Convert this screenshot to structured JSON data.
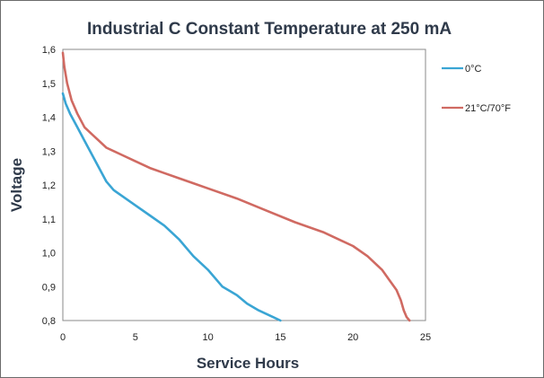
{
  "chart_data": {
    "type": "line",
    "title": "Industrial C Constant Temperature at 250 mA",
    "xlabel": "Service Hours",
    "ylabel": "Voltage",
    "xlim": [
      0,
      25
    ],
    "ylim": [
      0.8,
      1.6
    ],
    "x_ticks": [
      "0",
      "5",
      "10",
      "15",
      "20",
      "25"
    ],
    "y_ticks": [
      "0,8",
      "0,9",
      "1,0",
      "1,1",
      "1,2",
      "1,3",
      "1,4",
      "1,5",
      "1,6"
    ],
    "grid": true,
    "legend_position": "right",
    "series": [
      {
        "name": "0°C",
        "color": "#3aa5d4",
        "x": [
          0,
          0.2,
          0.5,
          1,
          1.5,
          2,
          2.5,
          3,
          3.5,
          4,
          5,
          6,
          7,
          8,
          9,
          10,
          11,
          12,
          12.7,
          13.5,
          14.5,
          15
        ],
        "y": [
          1.47,
          1.44,
          1.41,
          1.37,
          1.33,
          1.29,
          1.25,
          1.21,
          1.185,
          1.17,
          1.14,
          1.11,
          1.08,
          1.04,
          0.99,
          0.95,
          0.9,
          0.875,
          0.85,
          0.83,
          0.81,
          0.8
        ]
      },
      {
        "name": "21°C/70°F",
        "color": "#d06a62",
        "x": [
          0,
          0.1,
          0.3,
          0.6,
          1,
          1.5,
          2,
          2.5,
          3,
          4,
          5,
          6,
          7,
          8,
          9,
          10,
          12,
          14,
          16,
          18,
          20,
          21,
          22,
          22.5,
          23,
          23.3,
          23.5,
          23.7,
          23.9
        ],
        "y": [
          1.59,
          1.55,
          1.5,
          1.45,
          1.41,
          1.37,
          1.35,
          1.33,
          1.31,
          1.29,
          1.27,
          1.25,
          1.235,
          1.22,
          1.205,
          1.19,
          1.16,
          1.125,
          1.09,
          1.06,
          1.02,
          0.99,
          0.95,
          0.92,
          0.89,
          0.86,
          0.83,
          0.81,
          0.8
        ]
      }
    ]
  }
}
